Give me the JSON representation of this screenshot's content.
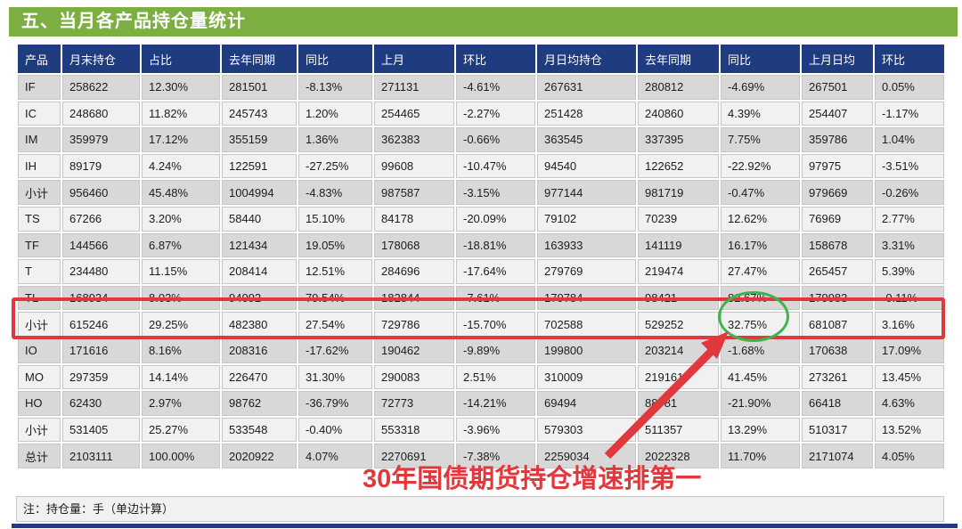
{
  "section": {
    "title": "五、当月各产品持仓量统计",
    "footnote": "注：持仓量：手（单边计算）"
  },
  "annotations": {
    "text": "30年国债期货持仓增速排第一",
    "highlighted_row": "TL",
    "circled_value": "82.67%"
  },
  "colors": {
    "title_bar_green": "#7CAE41",
    "header_navy": "#1F3C80",
    "row_gray": "#D8D8D8",
    "row_light": "#F1F1F1",
    "annotation_red": "#E0383D",
    "circle_green": "#3DB54A"
  },
  "chart_data": {
    "type": "table",
    "title": "五、当月各产品持仓量统计",
    "note": "注：持仓量：手（单边计算）",
    "columns": [
      "产品",
      "月末持仓",
      "占比",
      "去年同期",
      "同比",
      "上月",
      "环比",
      "月日均持仓",
      "去年同期",
      "同比",
      "上月日均",
      "环比"
    ],
    "rows": [
      [
        "IF",
        "258622",
        "12.30%",
        "281501",
        "-8.13%",
        "271131",
        "-4.61%",
        "267631",
        "280812",
        "-4.69%",
        "267501",
        "0.05%"
      ],
      [
        "IC",
        "248680",
        "11.82%",
        "245743",
        "1.20%",
        "254465",
        "-2.27%",
        "251428",
        "240860",
        "4.39%",
        "254407",
        "-1.17%"
      ],
      [
        "IM",
        "359979",
        "17.12%",
        "355159",
        "1.36%",
        "362383",
        "-0.66%",
        "363545",
        "337395",
        "7.75%",
        "359786",
        "1.04%"
      ],
      [
        "IH",
        "89179",
        "4.24%",
        "122591",
        "-27.25%",
        "99608",
        "-10.47%",
        "94540",
        "122652",
        "-22.92%",
        "97975",
        "-3.51%"
      ],
      [
        "小计",
        "956460",
        "45.48%",
        "1004994",
        "-4.83%",
        "987587",
        "-3.15%",
        "977144",
        "981719",
        "-0.47%",
        "979669",
        "-0.26%"
      ],
      [
        "TS",
        "67266",
        "3.20%",
        "58440",
        "15.10%",
        "84178",
        "-20.09%",
        "79102",
        "70239",
        "12.62%",
        "76969",
        "2.77%"
      ],
      [
        "TF",
        "144566",
        "6.87%",
        "121434",
        "19.05%",
        "178068",
        "-18.81%",
        "163933",
        "141119",
        "16.17%",
        "158678",
        "3.31%"
      ],
      [
        "T",
        "234480",
        "11.15%",
        "208414",
        "12.51%",
        "284696",
        "-17.64%",
        "279769",
        "219474",
        "27.47%",
        "265457",
        "5.39%"
      ],
      [
        "TL",
        "168934",
        "8.03%",
        "94092",
        "79.54%",
        "182844",
        "-7.61%",
        "179784",
        "98421",
        "82.67%",
        "179983",
        "-0.11%"
      ],
      [
        "小计",
        "615246",
        "29.25%",
        "482380",
        "27.54%",
        "729786",
        "-15.70%",
        "702588",
        "529252",
        "32.75%",
        "681087",
        "3.16%"
      ],
      [
        "IO",
        "171616",
        "8.16%",
        "208316",
        "-17.62%",
        "190462",
        "-9.89%",
        "199800",
        "203214",
        "-1.68%",
        "170638",
        "17.09%"
      ],
      [
        "MO",
        "297359",
        "14.14%",
        "226470",
        "31.30%",
        "290083",
        "2.51%",
        "310009",
        "219161",
        "41.45%",
        "273261",
        "13.45%"
      ],
      [
        "HO",
        "62430",
        "2.97%",
        "98762",
        "-36.79%",
        "72773",
        "-14.21%",
        "69494",
        "88981",
        "-21.90%",
        "66418",
        "4.63%"
      ],
      [
        "小计",
        "531405",
        "25.27%",
        "533548",
        "-0.40%",
        "553318",
        "-3.96%",
        "579303",
        "511357",
        "13.29%",
        "510317",
        "13.52%"
      ],
      [
        "总计",
        "2103111",
        "100.00%",
        "2020922",
        "4.07%",
        "2270691",
        "-7.38%",
        "2259034",
        "2022328",
        "11.70%",
        "2171074",
        "4.05%"
      ]
    ]
  }
}
